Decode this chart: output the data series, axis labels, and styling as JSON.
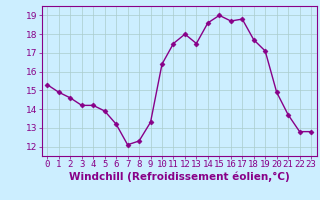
{
  "x": [
    0,
    1,
    2,
    3,
    4,
    5,
    6,
    7,
    8,
    9,
    10,
    11,
    12,
    13,
    14,
    15,
    16,
    17,
    18,
    19,
    20,
    21,
    22,
    23
  ],
  "y": [
    15.3,
    14.9,
    14.6,
    14.2,
    14.2,
    13.9,
    13.2,
    12.1,
    12.3,
    13.3,
    16.4,
    17.5,
    18.0,
    17.5,
    18.6,
    19.0,
    18.7,
    18.8,
    17.7,
    17.1,
    14.9,
    13.7,
    12.8,
    12.8
  ],
  "line_color": "#880088",
  "marker": "D",
  "marker_size": 2.5,
  "bg_color": "#cceeff",
  "grid_color": "#aacccc",
  "xlabel": "Windchill (Refroidissement éolien,°C)",
  "xlabel_color": "#880088",
  "ylim": [
    11.5,
    19.5
  ],
  "xlim": [
    -0.5,
    23.5
  ],
  "yticks": [
    12,
    13,
    14,
    15,
    16,
    17,
    18,
    19
  ],
  "xticks": [
    0,
    1,
    2,
    3,
    4,
    5,
    6,
    7,
    8,
    9,
    10,
    11,
    12,
    13,
    14,
    15,
    16,
    17,
    18,
    19,
    20,
    21,
    22,
    23
  ],
  "tick_label_fontsize": 6.5,
  "xlabel_fontsize": 7.5,
  "linewidth": 1.0
}
